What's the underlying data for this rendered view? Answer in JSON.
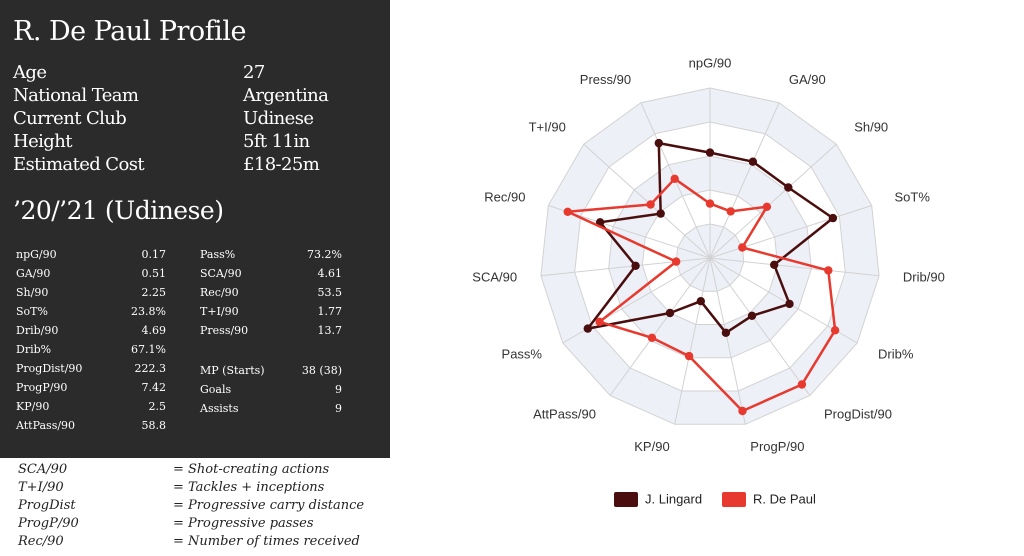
{
  "profile": {
    "title": "R. De Paul Profile",
    "info": [
      {
        "label": "Age",
        "value": "27"
      },
      {
        "label": "National Team",
        "value": "Argentina"
      },
      {
        "label": "Current Club",
        "value": "Udinese"
      },
      {
        "label": "Height",
        "value": "5ft 11in"
      },
      {
        "label": "Estimated Cost",
        "value": "£18-25m"
      }
    ],
    "season_title": "’20/’21 (Udinese)",
    "stats_left": [
      {
        "label": "npG/90",
        "value": "0.17"
      },
      {
        "label": "GA/90",
        "value": "0.51"
      },
      {
        "label": "Sh/90",
        "value": "2.25"
      },
      {
        "label": "SoT%",
        "value": "23.8%"
      },
      {
        "label": "Drib/90",
        "value": "4.69"
      },
      {
        "label": "Drib%",
        "value": "67.1%"
      },
      {
        "label": "ProgDist/90",
        "value": "222.3"
      },
      {
        "label": "ProgP/90",
        "value": "7.42"
      },
      {
        "label": "KP/90",
        "value": "2.5"
      },
      {
        "label": "AttPass/90",
        "value": "58.8"
      }
    ],
    "stats_right_a": [
      {
        "label": "Pass%",
        "value": "73.2%"
      },
      {
        "label": "SCA/90",
        "value": "4.61"
      },
      {
        "label": "Rec/90",
        "value": "53.5"
      },
      {
        "label": "T+I/90",
        "value": "1.77"
      },
      {
        "label": "Press/90",
        "value": "13.7"
      }
    ],
    "stats_right_b": [
      {
        "label": "MP (Starts)",
        "value": "38 (38)"
      },
      {
        "label": "Goals",
        "value": "9"
      },
      {
        "label": "Assists",
        "value": "9"
      }
    ]
  },
  "glossary": [
    {
      "term": "SCA/90",
      "definition": "= Shot-creating actions"
    },
    {
      "term": "T+I/90",
      "definition": "= Tackles + inceptions"
    },
    {
      "term": "ProgDist",
      "definition": "= Progressive carry distance"
    },
    {
      "term": "ProgP/90",
      "definition": "= Progressive passes"
    },
    {
      "term": "Rec/90",
      "definition": "= Number of times received"
    }
  ],
  "chart_data": {
    "type": "radar",
    "title": "",
    "axes": [
      "npG/90",
      "GA/90",
      "Sh/90",
      "SoT%",
      "Drib/90",
      "Drib%",
      "ProgDist/90",
      "ProgP/90",
      "KP/90",
      "AttPass/90",
      "Pass%",
      "SCA/90",
      "Rec/90",
      "T+I/90",
      "Press/90"
    ],
    "range": [
      0,
      100
    ],
    "rings": 5,
    "series": [
      {
        "name": "J. Lingard",
        "color": "#4a0e0e",
        "values": [
          62,
          62,
          62,
          76,
          38,
          54,
          42,
          45,
          26,
          40,
          83,
          44,
          68,
          39,
          74
        ]
      },
      {
        "name": "R. De Paul",
        "color": "#e8392e",
        "values": [
          32,
          30,
          45,
          20,
          70,
          85,
          92,
          92,
          59,
          58,
          75,
          20,
          88,
          47,
          51
        ]
      }
    ],
    "legend": "bottom"
  }
}
